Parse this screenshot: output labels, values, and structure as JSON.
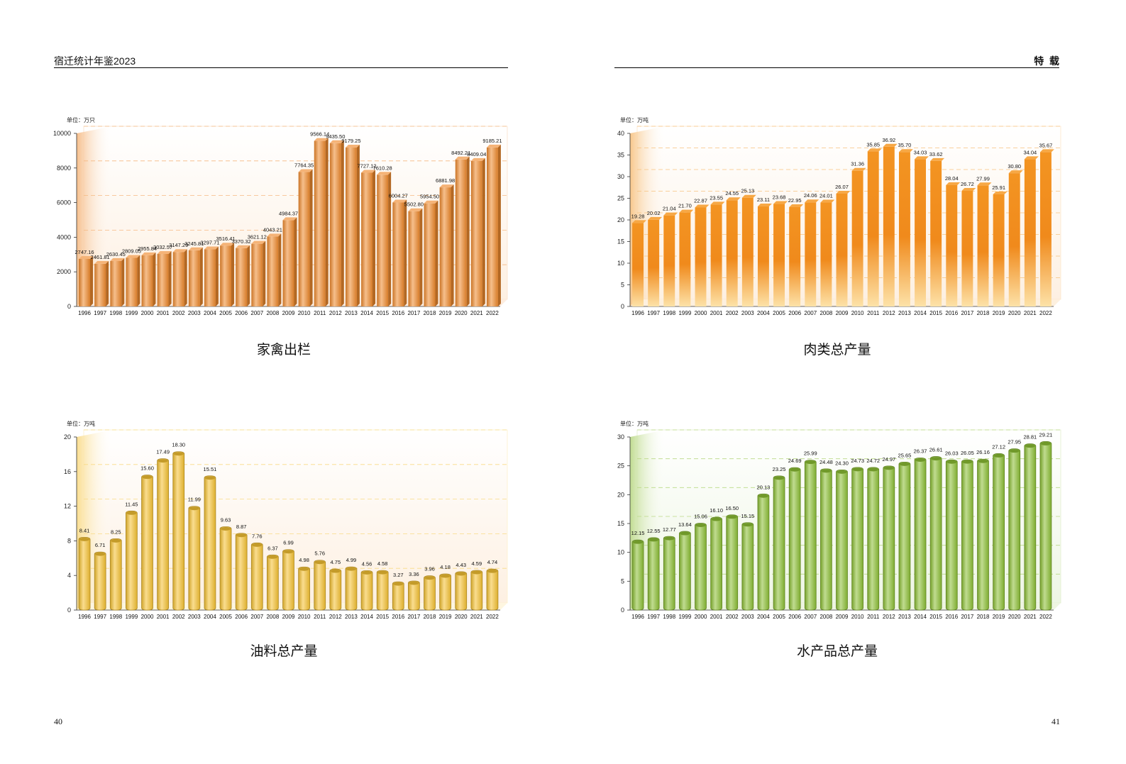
{
  "header": {
    "left_title": "宿迁统计年鉴2023",
    "right_title": "特  载"
  },
  "pages": {
    "left": "40",
    "right": "41"
  },
  "chart_data": [
    {
      "type": "bar",
      "title": "家禽出栏",
      "unit": "单位：万只",
      "categories": [
        "1996",
        "1997",
        "1998",
        "1999",
        "2000",
        "2001",
        "2002",
        "2003",
        "2004",
        "2005",
        "2006",
        "2007",
        "2008",
        "2009",
        "2010",
        "2011",
        "2012",
        "2013",
        "2014",
        "2015",
        "2016",
        "2017",
        "2018",
        "2019",
        "2020",
        "2021",
        "2022"
      ],
      "values": [
        2747.16,
        2461.81,
        2630.45,
        2809.05,
        2955.84,
        3032.57,
        3147.29,
        3245.81,
        3297.71,
        3516.41,
        3370.32,
        3621.12,
        4043.21,
        4984.37,
        7764.35,
        9566.14,
        9435.5,
        9179.25,
        7727.12,
        7610.28,
        6004.27,
        5502.8,
        5954.5,
        6881.98,
        8492.21,
        8409.04,
        9185.21
      ],
      "yticks": [
        0,
        2000,
        4000,
        6000,
        8000,
        10000
      ],
      "ylim": [
        0,
        10000
      ],
      "color": "#ef8a2e",
      "style": "box"
    },
    {
      "type": "bar",
      "title": "肉类总产量",
      "unit": "单位：万吨",
      "categories": [
        "1996",
        "1997",
        "1998",
        "1999",
        "2000",
        "2001",
        "2002",
        "2003",
        "2004",
        "2005",
        "2006",
        "2007",
        "2008",
        "2009",
        "2010",
        "2011",
        "2012",
        "2013",
        "2014",
        "2015",
        "2016",
        "2017",
        "2018",
        "2019",
        "2020",
        "2021",
        "2022"
      ],
      "values": [
        19.28,
        20.02,
        21.04,
        21.7,
        22.87,
        23.55,
        24.55,
        25.13,
        23.11,
        23.68,
        22.95,
        24.06,
        24.01,
        26.07,
        31.36,
        35.85,
        36.92,
        35.7,
        34.03,
        33.62,
        28.04,
        26.72,
        27.99,
        25.91,
        30.8,
        34.04,
        35.67
      ],
      "yticks": [
        0,
        5,
        10,
        15,
        20,
        25,
        30,
        35,
        40
      ],
      "ylim": [
        0,
        40
      ],
      "color": "#f39a2a",
      "style": "gradient"
    },
    {
      "type": "bar",
      "title": "油料总产量",
      "unit": "单位：万吨",
      "categories": [
        "1996",
        "1997",
        "1998",
        "1999",
        "2000",
        "2001",
        "2002",
        "2003",
        "2004",
        "2005",
        "2006",
        "2007",
        "2008",
        "2009",
        "2010",
        "2011",
        "2012",
        "2013",
        "2014",
        "2015",
        "2016",
        "2017",
        "2018",
        "2019",
        "2020",
        "2021",
        "2022"
      ],
      "values": [
        8.41,
        6.71,
        8.25,
        11.45,
        15.6,
        17.49,
        18.3,
        11.99,
        15.51,
        9.63,
        8.87,
        7.76,
        6.37,
        6.99,
        4.98,
        5.76,
        4.75,
        4.99,
        4.56,
        4.58,
        3.27,
        3.36,
        3.96,
        4.18,
        4.43,
        4.59,
        4.74
      ],
      "yticks": [
        0,
        4,
        8,
        12,
        16,
        20
      ],
      "ylim": [
        0,
        20
      ],
      "color": "#f5c233",
      "style": "rounded"
    },
    {
      "type": "bar",
      "title": "水产品总产量",
      "unit": "单位：万吨",
      "categories": [
        "1996",
        "1997",
        "1998",
        "1999",
        "2000",
        "2001",
        "2002",
        "2003",
        "2004",
        "2005",
        "2006",
        "2007",
        "2008",
        "2009",
        "2010",
        "2011",
        "2012",
        "2013",
        "2014",
        "2015",
        "2016",
        "2017",
        "2018",
        "2019",
        "2020",
        "2021",
        "2022"
      ],
      "values": [
        12.15,
        12.55,
        12.77,
        13.64,
        15.06,
        16.1,
        16.5,
        15.15,
        20.13,
        23.25,
        24.69,
        25.99,
        24.48,
        24.3,
        24.73,
        24.72,
        24.97,
        25.65,
        26.37,
        26.61,
        26.03,
        26.05,
        26.16,
        27.12,
        27.95,
        28.81,
        29.21
      ],
      "yticks": [
        0,
        5,
        10,
        15,
        20,
        25,
        30
      ],
      "ylim": [
        0,
        30
      ],
      "color": "#8cbf35",
      "style": "rounded"
    }
  ]
}
